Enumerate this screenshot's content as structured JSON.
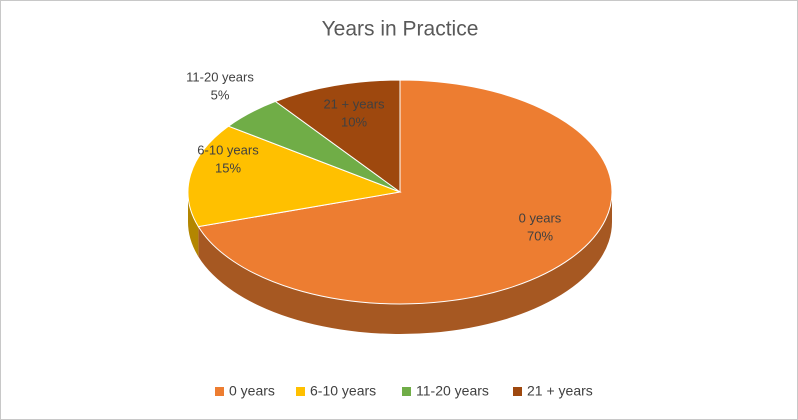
{
  "chart_data": {
    "type": "pie",
    "title": "Years in Practice",
    "categories": [
      "0 years",
      "6-10 years",
      "11-20 years",
      "21 + years"
    ],
    "values": [
      70,
      15,
      5,
      10
    ],
    "value_labels": [
      "70%",
      "15%",
      "5%",
      "10%"
    ],
    "colors": [
      "#ed7d31",
      "#ffc000",
      "#70ad47",
      "#9e480e"
    ],
    "legend": "bottom"
  }
}
